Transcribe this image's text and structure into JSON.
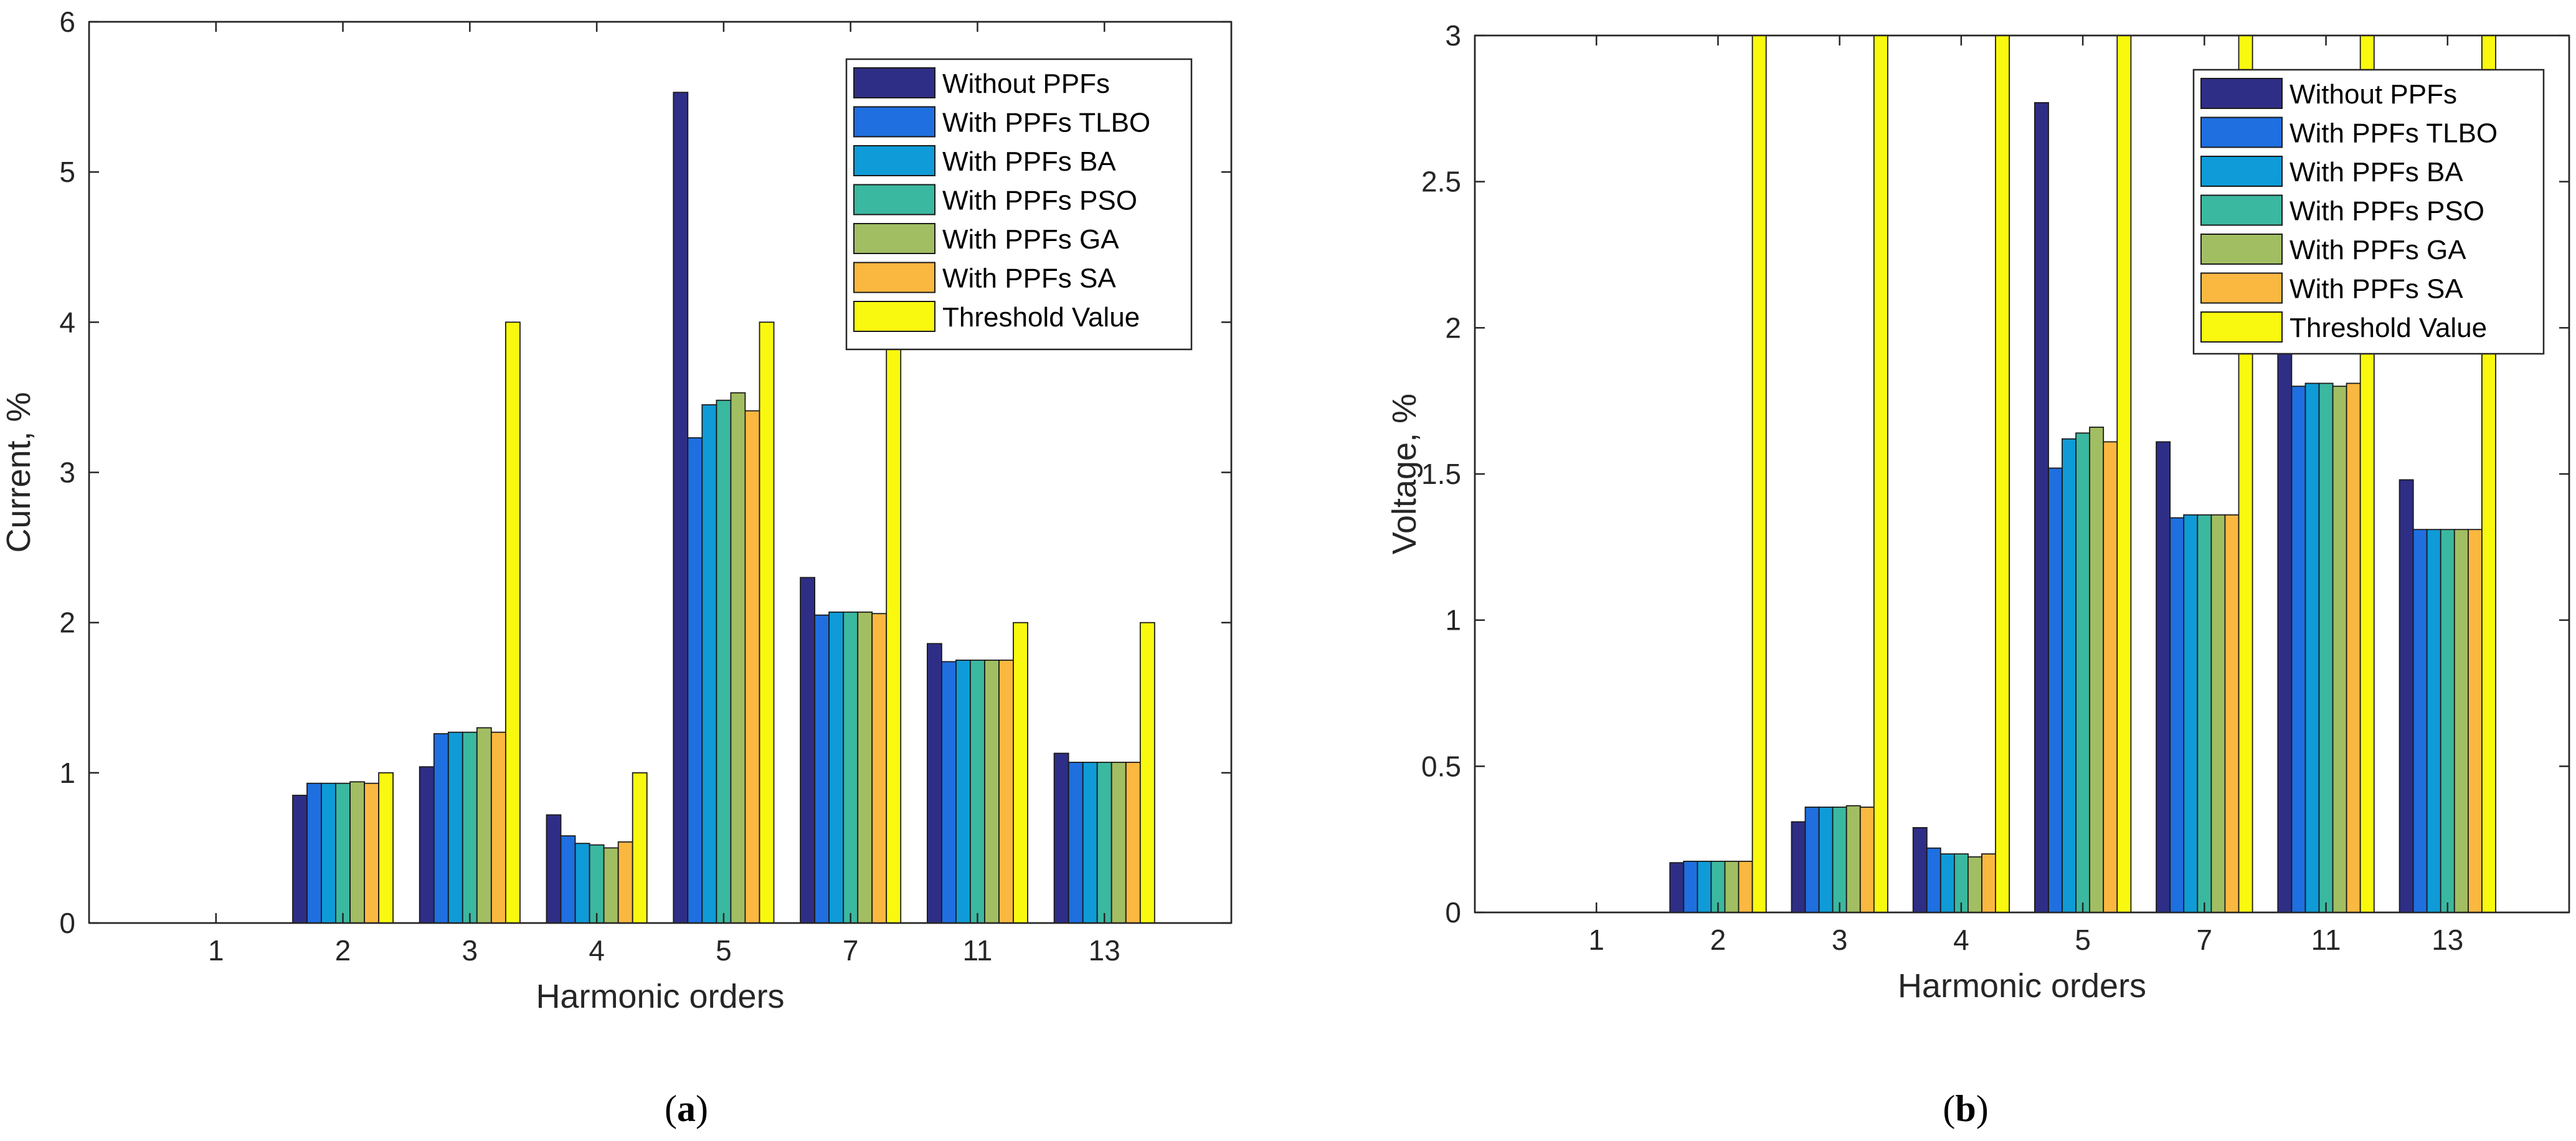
{
  "chart_data": [
    {
      "id": "a",
      "type": "bar",
      "title": "",
      "xlabel": "Harmonic orders",
      "ylabel": "Current, %",
      "ylim": [
        0,
        6
      ],
      "yticks": [
        "0",
        "1",
        "2",
        "3",
        "4",
        "5",
        "6"
      ],
      "categories": [
        "1",
        "2",
        "3",
        "4",
        "5",
        "7",
        "11",
        "13"
      ],
      "legend_position": "top-right",
      "series": [
        {
          "name": "Without PPFs",
          "color": "#2e2e86",
          "values": [
            0,
            0.85,
            1.04,
            0.72,
            5.53,
            2.3,
            1.86,
            1.13
          ]
        },
        {
          "name": "With PPFs TLBO",
          "color": "#1f6fe0",
          "values": [
            0,
            0.93,
            1.26,
            0.58,
            3.23,
            2.05,
            1.74,
            1.07
          ]
        },
        {
          "name": "With PPFs BA",
          "color": "#0f9bd7",
          "values": [
            0,
            0.93,
            1.27,
            0.53,
            3.45,
            2.07,
            1.75,
            1.07
          ]
        },
        {
          "name": "With PPFs PSO",
          "color": "#3bb8a0",
          "values": [
            0,
            0.93,
            1.27,
            0.52,
            3.48,
            2.07,
            1.75,
            1.07
          ]
        },
        {
          "name": "With PPFs GA",
          "color": "#a2be62",
          "values": [
            0,
            0.94,
            1.3,
            0.5,
            3.53,
            2.07,
            1.75,
            1.07
          ]
        },
        {
          "name": "With PPFs SA",
          "color": "#fbb840",
          "values": [
            0,
            0.93,
            1.27,
            0.54,
            3.41,
            2.06,
            1.75,
            1.07
          ]
        },
        {
          "name": "Threshold Value",
          "color": "#f9f90f",
          "values": [
            0,
            1.0,
            4.0,
            1.0,
            4.0,
            4.0,
            2.0,
            2.0
          ]
        }
      ],
      "caption_letter": "a"
    },
    {
      "id": "b",
      "type": "bar",
      "title": "",
      "xlabel": "Harmonic orders",
      "ylabel": "Voltage, %",
      "ylim": [
        0,
        3
      ],
      "yticks": [
        "0",
        "0.5",
        "1",
        "1.5",
        "2",
        "2.5",
        "3"
      ],
      "categories": [
        "1",
        "2",
        "3",
        "4",
        "5",
        "7",
        "11",
        "13"
      ],
      "legend_position": "top-right",
      "series": [
        {
          "name": "Without PPFs",
          "color": "#2e2e86",
          "values": [
            0,
            0.17,
            0.31,
            0.29,
            2.77,
            1.61,
            1.95,
            1.48
          ]
        },
        {
          "name": "With PPFs TLBO",
          "color": "#1f6fe0",
          "values": [
            0,
            0.175,
            0.36,
            0.22,
            1.52,
            1.35,
            1.8,
            1.31
          ]
        },
        {
          "name": "With PPFs BA",
          "color": "#0f9bd7",
          "values": [
            0,
            0.175,
            0.36,
            0.2,
            1.62,
            1.36,
            1.81,
            1.31
          ]
        },
        {
          "name": "With PPFs PSO",
          "color": "#3bb8a0",
          "values": [
            0,
            0.175,
            0.36,
            0.2,
            1.64,
            1.36,
            1.81,
            1.31
          ]
        },
        {
          "name": "With PPFs GA",
          "color": "#a2be62",
          "values": [
            0,
            0.175,
            0.365,
            0.19,
            1.66,
            1.36,
            1.8,
            1.31
          ]
        },
        {
          "name": "With PPFs SA",
          "color": "#fbb840",
          "values": [
            0,
            0.175,
            0.36,
            0.2,
            1.61,
            1.36,
            1.81,
            1.31
          ]
        },
        {
          "name": "Threshold Value",
          "color": "#f9f90f",
          "values": [
            0,
            3.0,
            3.0,
            3.0,
            3.0,
            3.0,
            3.0,
            3.0
          ]
        }
      ],
      "caption_letter": "b"
    }
  ]
}
